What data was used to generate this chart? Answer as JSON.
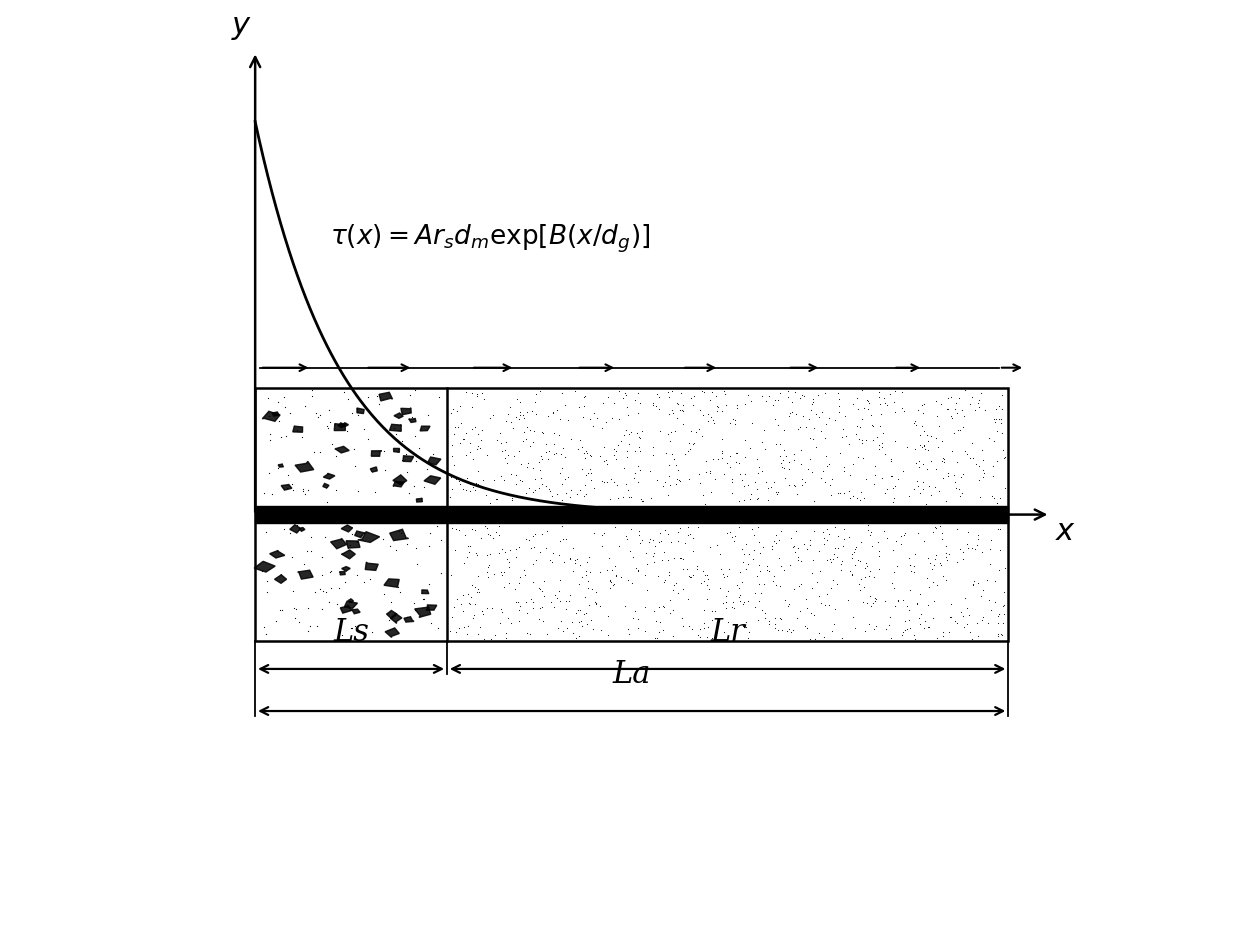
{
  "bg_color": "#ffffff",
  "curve_color": "#000000",
  "box_color": "#000000",
  "bar_color": "#000000",
  "arrow_color": "#000000",
  "formula": "$\\tau(x) = Ar_sd_m\\exp[B(x/d_g)]$",
  "label_x": "$x$",
  "label_y": "$y$",
  "label_Ls": "Ls",
  "label_Lr": "Lr",
  "label_La": "La",
  "figsize": [
    12.4,
    9.43
  ],
  "dpi": 100
}
